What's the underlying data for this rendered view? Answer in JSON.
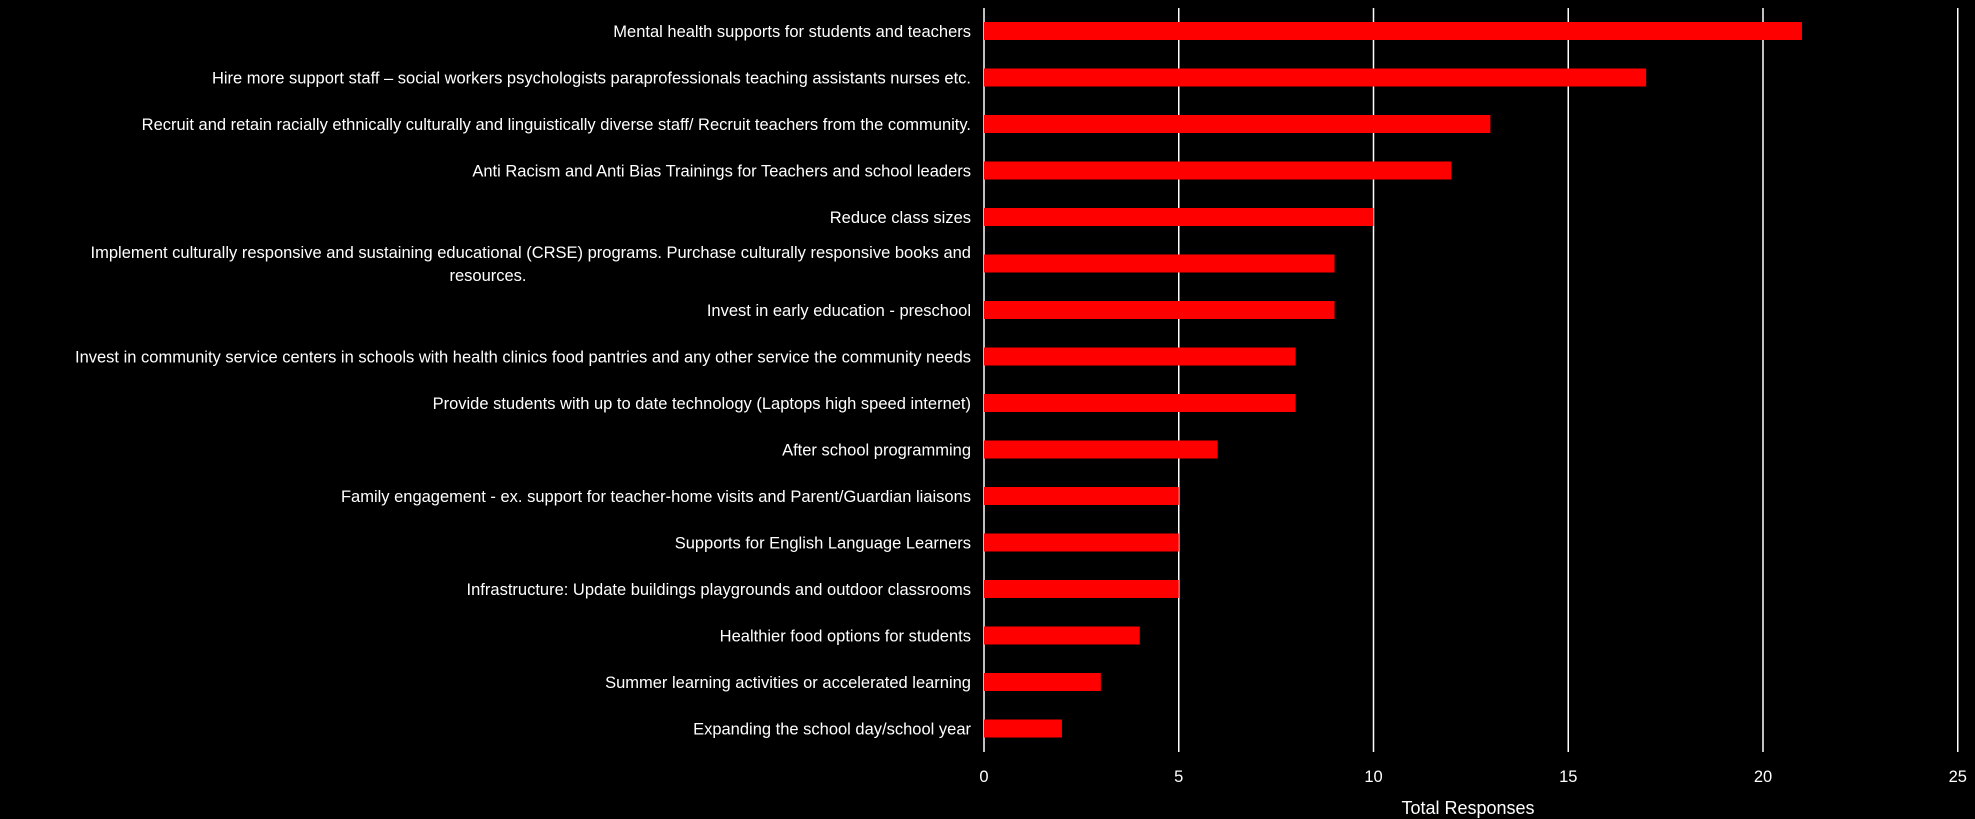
{
  "chart_data": {
    "type": "bar",
    "orientation": "horizontal",
    "categories": [
      [
        "Mental health supports for students and teachers"
      ],
      [
        "Hire more support staff – social workers psychologists paraprofessionals teaching assistants nurses etc."
      ],
      [
        "Recruit and retain racially ethnically culturally and linguistically diverse staff/ Recruit teachers from the community."
      ],
      [
        "Anti Racism and Anti Bias Trainings for Teachers and school leaders"
      ],
      [
        "Reduce class sizes"
      ],
      [
        "Implement culturally responsive and sustaining educational (CRSE) programs. Purchase culturally responsive books and",
        "resources."
      ],
      [
        "Invest in early education - preschool"
      ],
      [
        "Invest in community service centers in schools with health clinics food pantries and any other service the community needs"
      ],
      [
        "Provide students with up to date technology (Laptops high speed internet)"
      ],
      [
        "After school programming"
      ],
      [
        "Family engagement - ex. support for teacher-home visits and Parent/Guardian liaisons"
      ],
      [
        "Supports for English Language Learners"
      ],
      [
        "Infrastructure: Update buildings playgrounds and outdoor classrooms"
      ],
      [
        "Healthier food options for students"
      ],
      [
        "Summer learning activities or accelerated learning"
      ],
      [
        "Expanding the school day/school year"
      ]
    ],
    "values": [
      21,
      17,
      13,
      12,
      10,
      9,
      9,
      8,
      8,
      6,
      5,
      5,
      5,
      4,
      3,
      2
    ],
    "xlabel": "Total Responses",
    "ylabel": "",
    "xlim": [
      0,
      25
    ],
    "xticks": [
      0,
      5,
      10,
      15,
      20,
      25
    ],
    "grid": "vertical",
    "legend": "none",
    "colors": {
      "bar": "#ff0000",
      "background": "#000000",
      "text": "#ffffff",
      "grid": "#ffffff"
    }
  }
}
